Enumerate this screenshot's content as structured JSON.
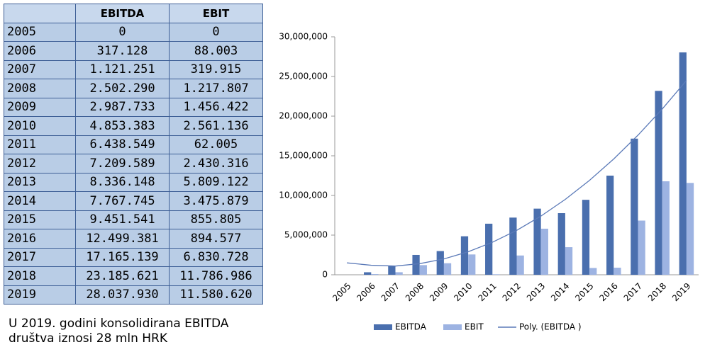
{
  "table": {
    "header": [
      "EBITDA",
      "EBIT"
    ],
    "rows": [
      [
        "2005",
        "0",
        "0"
      ],
      [
        "2006",
        "317.128",
        "88.003"
      ],
      [
        "2007",
        "1.121.251",
        "319.915"
      ],
      [
        "2008",
        "2.502.290",
        "1.217.807"
      ],
      [
        "2009",
        "2.987.733",
        "1.456.422"
      ],
      [
        "2010",
        "4.853.383",
        "2.561.136"
      ],
      [
        "2011",
        "6.438.549",
        "62.005"
      ],
      [
        "2012",
        "7.209.589",
        "2.430.316"
      ],
      [
        "2013",
        "8.336.148",
        "5.809.122"
      ],
      [
        "2014",
        "7.767.745",
        "3.475.879"
      ],
      [
        "2015",
        "9.451.541",
        "855.805"
      ],
      [
        "2016",
        "12.499.381",
        "894.577"
      ],
      [
        "2017",
        "17.165.139",
        "6.830.728"
      ],
      [
        "2018",
        "23.185.621",
        "11.786.986"
      ],
      [
        "2019",
        "28.037.930",
        "11.580.620"
      ]
    ]
  },
  "caption": "U 2019. godini konsolidirana EBITDA društva iznosi 28 mln HRK",
  "chart_data": {
    "type": "bar",
    "categories": [
      "2005",
      "2006",
      "2007",
      "2008",
      "2009",
      "2010",
      "2011",
      "2012",
      "2013",
      "2014",
      "2015",
      "2016",
      "2017",
      "2018",
      "2019"
    ],
    "series": [
      {
        "name": "EBITDA",
        "color": "#4a6fae",
        "values": [
          0,
          317128,
          1121251,
          2502290,
          2987733,
          4853383,
          6438549,
          7209589,
          8336148,
          7767745,
          9451541,
          12499381,
          17165139,
          23185621,
          28037930
        ]
      },
      {
        "name": "EBIT",
        "color": "#9db3e2",
        "values": [
          0,
          88003,
          319915,
          1217807,
          1456422,
          2561136,
          62005,
          2430316,
          5809122,
          3475879,
          855805,
          894577,
          6830728,
          11786986,
          11580620
        ]
      },
      {
        "name": "Poly. (EBITDA )",
        "type": "line",
        "color": "#5b7ab8",
        "values": [
          1500000,
          1200000,
          1100000,
          1400000,
          2000000,
          2900000,
          4100000,
          5600000,
          7400000,
          9500000,
          11900000,
          14600000,
          17600000,
          20900000,
          24500000
        ]
      }
    ],
    "ylim": [
      0,
      30000000
    ],
    "yticks": [
      0,
      {
        "value": 5000000,
        "label": "5,000,000"
      },
      {
        "value": 10000000,
        "label": "10,000,000"
      },
      {
        "value": 15000000,
        "label": "15,000,000"
      },
      {
        "value": 20000000,
        "label": "20,000,000"
      },
      {
        "value": 25000000,
        "label": "25,000,000"
      },
      {
        "value": 30000000,
        "label": "30,000,000"
      }
    ],
    "grid": false,
    "legend": "bottom"
  }
}
